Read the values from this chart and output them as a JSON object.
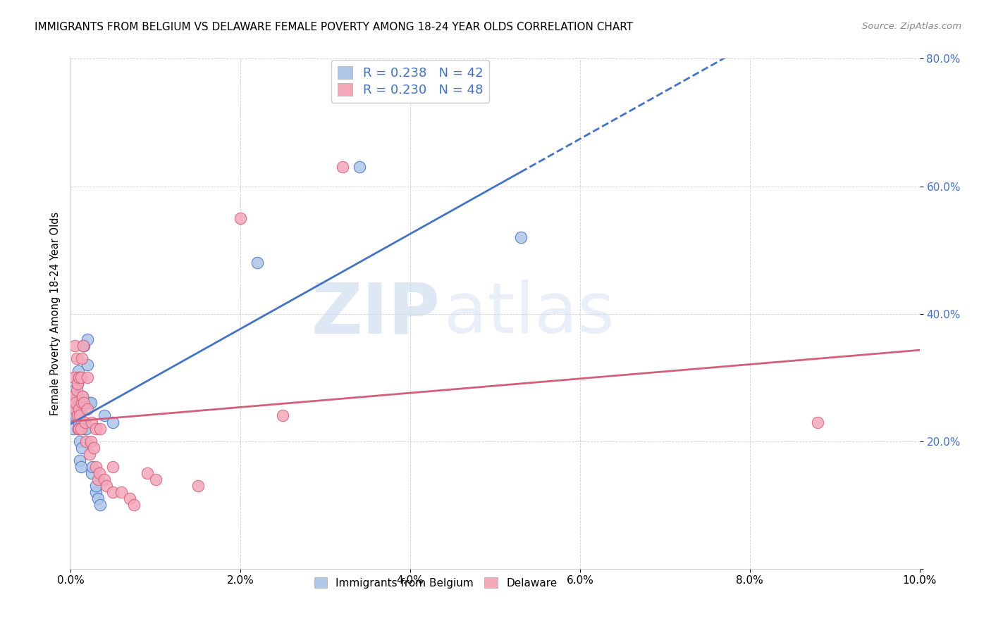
{
  "title": "IMMIGRANTS FROM BELGIUM VS DELAWARE FEMALE POVERTY AMONG 18-24 YEAR OLDS CORRELATION CHART",
  "source": "Source: ZipAtlas.com",
  "ylabel": "Female Poverty Among 18-24 Year Olds",
  "xlim": [
    0.0,
    0.1
  ],
  "ylim": [
    0.0,
    0.8
  ],
  "xticks": [
    0.0,
    0.02,
    0.04,
    0.06,
    0.08,
    0.1
  ],
  "yticks": [
    0.0,
    0.2,
    0.4,
    0.6,
    0.8
  ],
  "xtick_labels": [
    "0.0%",
    "2.0%",
    "4.0%",
    "6.0%",
    "8.0%",
    "10.0%"
  ],
  "ytick_labels": [
    "",
    "20.0%",
    "40.0%",
    "60.0%",
    "80.0%"
  ],
  "legend_labels": [
    "Immigrants from Belgium",
    "Delaware"
  ],
  "belgium_color": "#aec6e8",
  "delaware_color": "#f4a7b9",
  "belgium_line_color": "#4472c4",
  "delaware_line_color": "#d45f7a",
  "legend_text_color": "#4472c4",
  "watermark_zip": "ZIP",
  "watermark_atlas": "atlas",
  "R_belgium": 0.238,
  "N_belgium": 42,
  "R_delaware": 0.23,
  "N_delaware": 48,
  "belgium_x": [
    0.0003,
    0.0003,
    0.0005,
    0.0005,
    0.0005,
    0.0006,
    0.0007,
    0.0007,
    0.0008,
    0.0008,
    0.0009,
    0.0009,
    0.001,
    0.001,
    0.001,
    0.0011,
    0.0011,
    0.0012,
    0.0012,
    0.0013,
    0.0013,
    0.0014,
    0.0014,
    0.0015,
    0.0016,
    0.0017,
    0.0018,
    0.002,
    0.002,
    0.0022,
    0.0024,
    0.0025,
    0.0026,
    0.003,
    0.003,
    0.0032,
    0.0035,
    0.004,
    0.005,
    0.022,
    0.034,
    0.053
  ],
  "belgium_y": [
    0.22,
    0.26,
    0.25,
    0.28,
    0.3,
    0.24,
    0.25,
    0.27,
    0.24,
    0.29,
    0.22,
    0.31,
    0.23,
    0.26,
    0.3,
    0.17,
    0.2,
    0.16,
    0.25,
    0.19,
    0.23,
    0.22,
    0.27,
    0.35,
    0.35,
    0.22,
    0.22,
    0.32,
    0.36,
    0.26,
    0.26,
    0.15,
    0.16,
    0.12,
    0.13,
    0.11,
    0.1,
    0.24,
    0.23,
    0.48,
    0.63,
    0.52
  ],
  "delaware_x": [
    0.0003,
    0.0004,
    0.0005,
    0.0005,
    0.0006,
    0.0007,
    0.0007,
    0.0008,
    0.0008,
    0.0009,
    0.001,
    0.001,
    0.001,
    0.0011,
    0.0012,
    0.0012,
    0.0013,
    0.0013,
    0.0014,
    0.0015,
    0.0016,
    0.0017,
    0.0018,
    0.002,
    0.002,
    0.0022,
    0.0024,
    0.0025,
    0.0027,
    0.003,
    0.003,
    0.0032,
    0.0034,
    0.0035,
    0.004,
    0.0042,
    0.005,
    0.005,
    0.006,
    0.007,
    0.0075,
    0.009,
    0.01,
    0.015,
    0.02,
    0.025,
    0.032,
    0.088
  ],
  "delaware_y": [
    0.27,
    0.3,
    0.25,
    0.35,
    0.26,
    0.28,
    0.33,
    0.24,
    0.29,
    0.22,
    0.22,
    0.25,
    0.3,
    0.24,
    0.22,
    0.3,
    0.26,
    0.33,
    0.27,
    0.35,
    0.26,
    0.23,
    0.2,
    0.25,
    0.3,
    0.18,
    0.2,
    0.23,
    0.19,
    0.16,
    0.22,
    0.14,
    0.15,
    0.22,
    0.14,
    0.13,
    0.12,
    0.16,
    0.12,
    0.11,
    0.1,
    0.15,
    0.14,
    0.13,
    0.55,
    0.24,
    0.63,
    0.23
  ],
  "background_color": "#ffffff",
  "grid_color": "#d0d0d0"
}
